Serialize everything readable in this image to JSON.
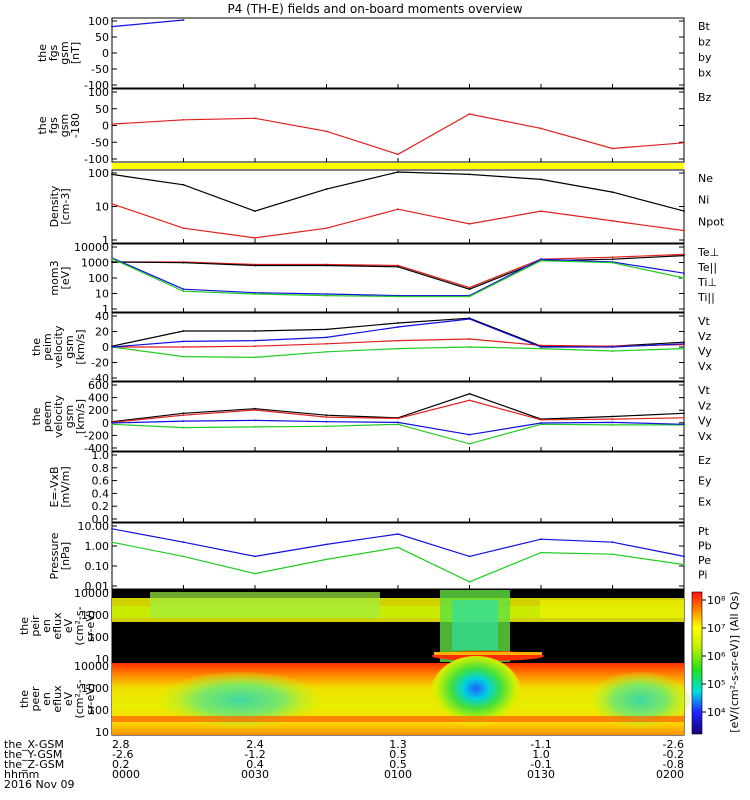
{
  "title": "P4 (TH-E) fields and on-board moments overview",
  "colors": {
    "black": "#000000",
    "red": "#e0201c",
    "green": "#22cc22",
    "blue": "#1010e0",
    "yellow": "#ffff00"
  },
  "panels": [
    {
      "id": "fgs",
      "ylabel": [
        "the",
        "fgs",
        "gsm",
        "[nT]"
      ],
      "ticks": [
        "100",
        "50",
        "0",
        "-50",
        "-100"
      ],
      "legend": [
        {
          "text": "Bt",
          "color": "black"
        },
        {
          "text": "bz",
          "color": "red"
        },
        {
          "text": "by",
          "color": "green"
        },
        {
          "text": "bx",
          "color": "blue"
        }
      ]
    },
    {
      "id": "fgs_clock",
      "ylabel": [
        "the",
        "fgs",
        "gsm",
        "-180"
      ],
      "ticks": [
        "100",
        "50",
        "0",
        "-50",
        "-100"
      ],
      "legend": [
        {
          "text": "Bz",
          "color": "red"
        }
      ]
    },
    {
      "id": "density",
      "ylabel": [
        "Density",
        "[cm-3]"
      ],
      "ticks": [
        "100",
        "10",
        "1"
      ],
      "legend": [
        {
          "text": "Ne",
          "color": "red"
        },
        {
          "text": "Ni",
          "color": "black"
        },
        {
          "text": "Npot",
          "color": "blue"
        }
      ]
    },
    {
      "id": "temp",
      "ylabel": [
        "mom3",
        "[eV]"
      ],
      "ticks": [
        "10000",
        "1000",
        "100",
        "10",
        "1"
      ],
      "legend": [
        {
          "text": "Te⊥",
          "color": "red"
        },
        {
          "text": "Te||",
          "color": "black"
        },
        {
          "text": "Ti⊥",
          "color": "blue"
        },
        {
          "text": "Ti||",
          "color": "green"
        }
      ]
    },
    {
      "id": "peim_v",
      "ylabel": [
        "the",
        "peim",
        "velocity",
        "gsm",
        "[km/s]"
      ],
      "ticks": [
        "40",
        "20",
        "0",
        "-20",
        "-40"
      ],
      "legend": [
        {
          "text": "Vt",
          "color": "black"
        },
        {
          "text": "Vz",
          "color": "red"
        },
        {
          "text": "Vy",
          "color": "green"
        },
        {
          "text": "Vx",
          "color": "blue"
        }
      ]
    },
    {
      "id": "peem_v",
      "ylabel": [
        "the",
        "peem",
        "velocity",
        "gsm",
        "[km/s]"
      ],
      "ticks": [
        "600",
        "400",
        "200",
        "0",
        "-200",
        "-400"
      ],
      "legend": [
        {
          "text": "Vt",
          "color": "black"
        },
        {
          "text": "Vz",
          "color": "red"
        },
        {
          "text": "Vy",
          "color": "green"
        },
        {
          "text": "Vx",
          "color": "blue"
        }
      ]
    },
    {
      "id": "efield",
      "ylabel": [
        "E=-VxB",
        "[mV/m]"
      ],
      "ticks": [
        "1.0",
        "0.8",
        "0.6",
        "0.4",
        "0.2",
        "0.0"
      ],
      "legend": [
        {
          "text": "Ez",
          "color": "red"
        },
        {
          "text": "Ey",
          "color": "green"
        },
        {
          "text": "Ex",
          "color": "blue"
        }
      ]
    },
    {
      "id": "pressure",
      "ylabel": [
        "Pressure",
        "[nPa]"
      ],
      "ticks": [
        "10.00",
        "1.00",
        "0.10",
        "0.01"
      ],
      "legend": [
        {
          "text": "Pt",
          "color": "black"
        },
        {
          "text": "Pb",
          "color": "red"
        },
        {
          "text": "Pe",
          "color": "green"
        },
        {
          "text": "Pi",
          "color": "blue"
        }
      ]
    },
    {
      "id": "peir",
      "ylabel": [
        "the",
        "peir",
        "en",
        "eflux",
        "eV",
        "(cm²-s-",
        "sr-eV)"
      ],
      "ticks": [
        "10000",
        "1000",
        "100",
        "10"
      ],
      "legend": []
    },
    {
      "id": "peer",
      "ylabel": [
        "the",
        "peer",
        "en",
        "eflux",
        "eV",
        "(cm²-s-",
        "sr-eV)"
      ],
      "ticks": [
        "10000",
        "1000",
        "100",
        "10"
      ],
      "legend": []
    }
  ],
  "colorbar": {
    "ticks": [
      "10⁸",
      "10⁷",
      "10⁶",
      "10⁵",
      "10⁴"
    ],
    "label": "[eV/(cm²-s-sr-eV)] (All Qs)"
  },
  "xaxis": {
    "rows": [
      {
        "name": "the_X-GSM",
        "values": [
          "2.8",
          "2.4",
          "1.3",
          "-1.1",
          "-2.6"
        ]
      },
      {
        "name": "the_Y-GSM",
        "values": [
          "-2.6",
          "-1.2",
          "0.5",
          "1.0",
          "-0.2"
        ]
      },
      {
        "name": "the_Z-GSM",
        "values": [
          "0.2",
          "0.4",
          "0.5",
          "-0.1",
          "-0.8"
        ]
      },
      {
        "name": "hhmm",
        "values": [
          "0000",
          "0030",
          "0100",
          "0130",
          "0200"
        ]
      }
    ],
    "date": "2016 Nov 09"
  },
  "chart_data": {
    "type": "line",
    "title": "P4 (TH-E) fields and on-board moments overview",
    "x": [
      "0000",
      "0015",
      "0030",
      "0045",
      "0100",
      "0115",
      "0130",
      "0145",
      "0200"
    ],
    "xlabel": "hhmm",
    "date": "2016 Nov 09",
    "panels": [
      {
        "name": "the fgs gsm [nT]",
        "ylim": [
          -100,
          100
        ],
        "series": [
          {
            "name": "Bt",
            "values": [
              null,
              null,
              null,
              null,
              null,
              null,
              null,
              null,
              null
            ]
          },
          {
            "name": "bz",
            "values": [
              null,
              null,
              null,
              null,
              null,
              null,
              null,
              null,
              null
            ]
          },
          {
            "name": "by",
            "values": [
              null,
              null,
              null,
              null,
              null,
              null,
              null,
              null,
              null
            ]
          },
          {
            "name": "bx",
            "values": [
              80,
              110,
              null,
              null,
              null,
              null,
              null,
              null,
              null
            ]
          }
        ]
      },
      {
        "name": "the fgs gsm -180 [nT]",
        "ylim": [
          -120,
          120
        ],
        "series": [
          {
            "name": "Bz",
            "values": [
              5,
              20,
              25,
              -20,
              -100,
              40,
              -10,
              -80,
              -60
            ]
          }
        ]
      },
      {
        "name": "Density [cm-3]",
        "scale": "log",
        "ylim": [
          0.3,
          200
        ],
        "series": [
          {
            "name": "Ne",
            "values": [
              10,
              1,
              0.4,
              1,
              6,
              1.5,
              5,
              2,
              0.8
            ]
          },
          {
            "name": "Ni",
            "values": [
              160,
              60,
              5,
              40,
              240,
              160,
              100,
              30,
              5
            ]
          }
        ]
      },
      {
        "name": "mom3 [eV]",
        "scale": "log",
        "ylim": [
          1,
          10000
        ],
        "series": [
          {
            "name": "Te⊥",
            "values": [
              1000,
              1000,
              700,
              700,
              600,
              25,
              1500,
              2000,
              3000
            ]
          },
          {
            "name": "Te||",
            "values": [
              1000,
              900,
              600,
              600,
              500,
              20,
              1200,
              1500,
              2500
            ]
          },
          {
            "name": "Ti⊥",
            "values": [
              1800,
              20,
              12,
              10,
              8,
              8,
              1500,
              1000,
              200
            ]
          },
          {
            "name": "Ti||",
            "values": [
              1600,
              15,
              10,
              8,
              7,
              7,
              1200,
              900,
              100
            ]
          }
        ]
      },
      {
        "name": "the peim velocity gsm [km/s]",
        "ylim": [
          -40,
          40
        ],
        "series": [
          {
            "name": "Vt",
            "values": [
              1,
              20,
              20,
              22,
              30,
              36,
              1,
              1,
              6
            ]
          },
          {
            "name": "Vz",
            "values": [
              0,
              0,
              1,
              4,
              8,
              10,
              2,
              1,
              3
            ]
          },
          {
            "name": "Vy",
            "values": [
              0,
              -12,
              -13,
              -6,
              -2,
              0,
              -2,
              -5,
              -2
            ]
          },
          {
            "name": "Vx",
            "values": [
              0,
              7,
              8,
              12,
              25,
              35,
              0,
              0,
              4
            ]
          }
        ]
      },
      {
        "name": "the peem velocity gsm [km/s]",
        "ylim": [
          -400,
          600
        ],
        "series": [
          {
            "name": "Vt",
            "values": [
              20,
              150,
              220,
              120,
              80,
              450,
              60,
              100,
              150
            ]
          },
          {
            "name": "Vz",
            "values": [
              10,
              120,
              200,
              90,
              70,
              350,
              50,
              60,
              80
            ]
          },
          {
            "name": "Vy",
            "values": [
              -20,
              -70,
              -60,
              -50,
              -20,
              -320,
              -20,
              -30,
              -30
            ]
          },
          {
            "name": "Vx",
            "values": [
              0,
              30,
              40,
              20,
              10,
              -180,
              0,
              10,
              -20
            ]
          }
        ]
      },
      {
        "name": "E=-VxB [mV/m]",
        "ylim": [
          0,
          1
        ],
        "series": []
      },
      {
        "name": "Pressure [nPa]",
        "scale": "log",
        "ylim": [
          0.005,
          20
        ],
        "series": [
          {
            "name": "Pi",
            "values": [
              12,
              2,
              0.3,
              1.5,
              6,
              0.3,
              3,
              2,
              0.3
            ]
          },
          {
            "name": "Pe",
            "values": [
              2,
              0.3,
              0.03,
              0.2,
              1,
              0.01,
              0.5,
              0.4,
              0.1
            ]
          }
        ]
      }
    ]
  }
}
